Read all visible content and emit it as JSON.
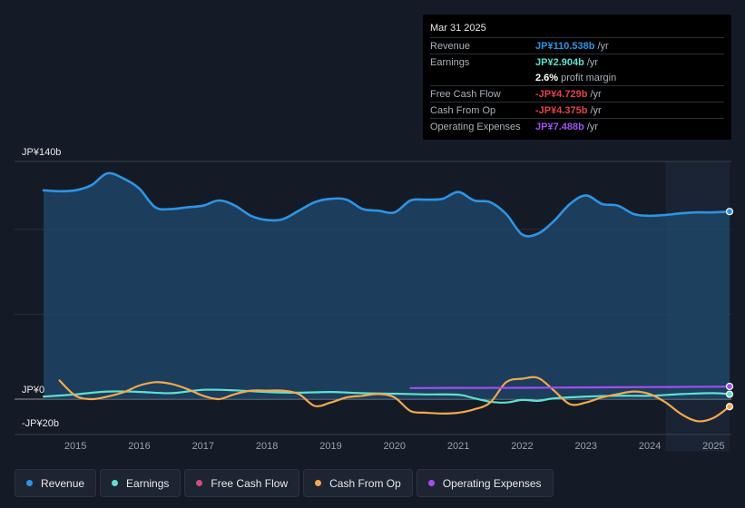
{
  "tooltip": {
    "date": "Mar 31 2025",
    "rows": [
      {
        "label": "Revenue",
        "value": "JP¥110.538b",
        "unit": "/yr",
        "color": "#2d94e4"
      },
      {
        "label": "Earnings",
        "value": "JP¥2.904b",
        "unit": "/yr",
        "color": "#5fe0cf"
      },
      {
        "label": "",
        "value": "2.6%",
        "unit": "profit margin",
        "color": "#ffffff"
      },
      {
        "label": "Free Cash Flow",
        "value": "-JP¥4.729b",
        "unit": "/yr",
        "color": "#e5414b"
      },
      {
        "label": "Cash From Op",
        "value": "-JP¥4.375b",
        "unit": "/yr",
        "color": "#e5414b"
      },
      {
        "label": "Operating Expenses",
        "value": "JP¥7.488b",
        "unit": "/yr",
        "color": "#a050f0"
      }
    ]
  },
  "chart_data": {
    "type": "area",
    "title": "",
    "xlabel": "",
    "ylabel": "",
    "ylim": [
      -20,
      140
    ],
    "y_tick_labels": [
      "JP¥140b",
      "JP¥0",
      "-JP¥20b"
    ],
    "x_tick_labels": [
      "2015",
      "2016",
      "2017",
      "2018",
      "2019",
      "2020",
      "2021",
      "2022",
      "2023",
      "2024",
      "2025"
    ],
    "series": [
      {
        "name": "Revenue",
        "color": "#2d94e4",
        "x": [
          2014.5,
          2014.75,
          2015.0,
          2015.25,
          2015.5,
          2015.75,
          2016.0,
          2016.25,
          2016.5,
          2016.75,
          2017.0,
          2017.25,
          2017.5,
          2017.75,
          2018.0,
          2018.25,
          2018.5,
          2018.75,
          2019.0,
          2019.25,
          2019.5,
          2019.75,
          2020.0,
          2020.25,
          2020.5,
          2020.75,
          2021.0,
          2021.25,
          2021.5,
          2021.75,
          2022.0,
          2022.25,
          2022.5,
          2022.75,
          2023.0,
          2023.25,
          2023.5,
          2023.75,
          2024.0,
          2024.25,
          2024.5,
          2024.75,
          2025.0,
          2025.25
        ],
        "values": [
          123,
          122.5,
          123,
          126,
          133,
          130,
          124,
          113,
          112,
          113,
          114,
          117,
          114,
          108,
          105.5,
          106,
          111,
          116,
          118,
          117.5,
          112,
          111,
          110,
          117,
          117.5,
          118,
          122,
          117,
          116,
          109,
          97,
          97.5,
          105,
          115,
          120,
          115,
          114,
          109,
          108,
          108.5,
          109.5,
          110,
          110,
          110.5
        ]
      },
      {
        "name": "Earnings",
        "color": "#5fe0cf",
        "x": [
          2014.5,
          2015.0,
          2015.5,
          2016.0,
          2016.5,
          2017.0,
          2017.5,
          2018.0,
          2018.5,
          2019.0,
          2019.5,
          2020.0,
          2020.5,
          2021.0,
          2021.25,
          2021.5,
          2021.75,
          2022.0,
          2022.25,
          2022.5,
          2023.0,
          2023.5,
          2024.0,
          2024.5,
          2025.0,
          2025.25
        ],
        "values": [
          1.5,
          2.8,
          4.5,
          4.3,
          3.5,
          5.5,
          5.2,
          4.2,
          3.8,
          4.2,
          3.5,
          3.2,
          2.8,
          2.6,
          0.5,
          -1.5,
          -2.0,
          -0.5,
          -1.0,
          0.5,
          1.5,
          2.0,
          2.0,
          3.0,
          3.5,
          2.9
        ]
      },
      {
        "name": "Free Cash Flow",
        "color": "#e5414b",
        "x": [],
        "values": []
      },
      {
        "name": "Cash From Op",
        "color": "#f3a84f",
        "x": [
          2014.75,
          2015.0,
          2015.25,
          2015.5,
          2015.75,
          2016.0,
          2016.25,
          2016.5,
          2016.75,
          2017.0,
          2017.25,
          2017.5,
          2017.75,
          2018.0,
          2018.25,
          2018.5,
          2018.75,
          2019.0,
          2019.25,
          2019.5,
          2019.75,
          2020.0,
          2020.25,
          2020.5,
          2020.75,
          2021.0,
          2021.25,
          2021.5,
          2021.75,
          2022.0,
          2022.25,
          2022.5,
          2022.75,
          2023.0,
          2023.25,
          2023.5,
          2023.75,
          2024.0,
          2024.25,
          2024.5,
          2024.75,
          2025.0,
          2025.25
        ],
        "values": [
          11,
          2,
          0,
          1.5,
          4,
          8,
          10,
          9,
          6,
          2,
          0,
          3,
          5,
          5,
          5,
          3,
          -4,
          -2,
          1,
          2,
          3,
          1,
          -7,
          -8,
          -8.5,
          -8,
          -6,
          -2,
          10,
          12,
          12.5,
          5,
          -3,
          -2,
          1,
          3,
          4.5,
          3,
          -2,
          -9,
          -13,
          -11,
          -4.4
        ]
      },
      {
        "name": "Operating Expenses",
        "color": "#a050f0",
        "x": [
          2020.25,
          2021.0,
          2022.0,
          2023.0,
          2024.0,
          2025.0,
          2025.25
        ],
        "values": [
          6.5,
          6.6,
          6.7,
          6.9,
          7.1,
          7.3,
          7.5
        ]
      }
    ]
  },
  "legend": [
    {
      "label": "Revenue",
      "color": "#2d94e4"
    },
    {
      "label": "Earnings",
      "color": "#5fe0cf"
    },
    {
      "label": "Free Cash Flow",
      "color": "#cc4e7e"
    },
    {
      "label": "Cash From Op",
      "color": "#f3a84f"
    },
    {
      "label": "Operating Expenses",
      "color": "#a050f0"
    }
  ]
}
